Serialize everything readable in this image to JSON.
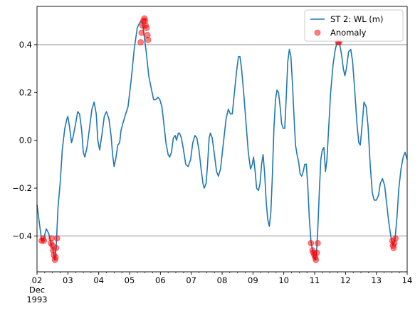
{
  "chart_data": {
    "type": "line",
    "title": "",
    "xlabel": "",
    "ylabel": "",
    "x_origin_label": [
      "02",
      "Dec",
      "1993"
    ],
    "x_ticks": [
      {
        "day": 2,
        "label": "02"
      },
      {
        "day": 3,
        "label": "03"
      },
      {
        "day": 4,
        "label": "04"
      },
      {
        "day": 5,
        "label": "05"
      },
      {
        "day": 6,
        "label": "06"
      },
      {
        "day": 7,
        "label": "07"
      },
      {
        "day": 8,
        "label": "08"
      },
      {
        "day": 9,
        "label": "09"
      },
      {
        "day": 10,
        "label": "10"
      },
      {
        "day": 11,
        "label": "11"
      },
      {
        "day": 12,
        "label": "12"
      },
      {
        "day": 13,
        "label": "13"
      },
      {
        "day": 14,
        "label": "14"
      }
    ],
    "xlim": [
      2,
      14
    ],
    "ylim": [
      -0.55,
      0.56
    ],
    "y_ticks": [
      -0.4,
      -0.2,
      0.0,
      0.2,
      0.4
    ],
    "y_tick_labels": [
      "−0.4",
      "−0.2",
      "0.0",
      "0.2",
      "0.4"
    ],
    "threshold_lines": [
      0.4,
      -0.4
    ],
    "legend_position": "upper right",
    "series": [
      {
        "name": "ST 2: WL (m)",
        "kind": "line",
        "color": "#1f77b4",
        "points": [
          [
            2.0,
            -0.27
          ],
          [
            2.08,
            -0.35
          ],
          [
            2.15,
            -0.42
          ],
          [
            2.22,
            -0.41
          ],
          [
            2.3,
            -0.37
          ],
          [
            2.38,
            -0.39
          ],
          [
            2.45,
            -0.43
          ],
          [
            2.52,
            -0.46
          ],
          [
            2.58,
            -0.5
          ],
          [
            2.62,
            -0.45
          ],
          [
            2.68,
            -0.28
          ],
          [
            2.75,
            -0.18
          ],
          [
            2.82,
            -0.04
          ],
          [
            2.9,
            0.05
          ],
          [
            2.97,
            0.09
          ],
          [
            3.0,
            0.1
          ],
          [
            3.05,
            0.06
          ],
          [
            3.12,
            -0.01
          ],
          [
            3.18,
            0.02
          ],
          [
            3.25,
            0.07
          ],
          [
            3.32,
            0.12
          ],
          [
            3.38,
            0.11
          ],
          [
            3.45,
            0.04
          ],
          [
            3.5,
            -0.05
          ],
          [
            3.55,
            -0.07
          ],
          [
            3.62,
            -0.03
          ],
          [
            3.7,
            0.05
          ],
          [
            3.78,
            0.13
          ],
          [
            3.85,
            0.16
          ],
          [
            3.92,
            0.11
          ],
          [
            3.97,
            0.0
          ],
          [
            4.03,
            -0.04
          ],
          [
            4.1,
            0.02
          ],
          [
            4.18,
            0.1
          ],
          [
            4.25,
            0.12
          ],
          [
            4.33,
            0.09
          ],
          [
            4.4,
            0.02
          ],
          [
            4.45,
            -0.06
          ],
          [
            4.5,
            -0.11
          ],
          [
            4.55,
            -0.08
          ],
          [
            4.62,
            -0.02
          ],
          [
            4.68,
            -0.01
          ],
          [
            4.72,
            0.04
          ],
          [
            4.78,
            0.07
          ],
          [
            4.85,
            0.1
          ],
          [
            4.95,
            0.14
          ],
          [
            5.05,
            0.25
          ],
          [
            5.15,
            0.38
          ],
          [
            5.25,
            0.47
          ],
          [
            5.32,
            0.49
          ],
          [
            5.38,
            0.5
          ],
          [
            5.42,
            0.49
          ],
          [
            5.48,
            0.43
          ],
          [
            5.55,
            0.36
          ],
          [
            5.62,
            0.27
          ],
          [
            5.7,
            0.22
          ],
          [
            5.78,
            0.17
          ],
          [
            5.85,
            0.17
          ],
          [
            5.92,
            0.18
          ],
          [
            5.98,
            0.17
          ],
          [
            6.05,
            0.14
          ],
          [
            6.12,
            0.06
          ],
          [
            6.18,
            -0.01
          ],
          [
            6.25,
            -0.06
          ],
          [
            6.3,
            -0.07
          ],
          [
            6.36,
            -0.05
          ],
          [
            6.42,
            0.01
          ],
          [
            6.48,
            0.02
          ],
          [
            6.52,
            0.0
          ],
          [
            6.58,
            0.03
          ],
          [
            6.62,
            0.03
          ],
          [
            6.68,
            0.01
          ],
          [
            6.75,
            -0.04
          ],
          [
            6.82,
            -0.1
          ],
          [
            6.9,
            -0.11
          ],
          [
            6.98,
            -0.08
          ],
          [
            7.05,
            -0.01
          ],
          [
            7.12,
            0.02
          ],
          [
            7.18,
            0.01
          ],
          [
            7.25,
            -0.04
          ],
          [
            7.32,
            -0.12
          ],
          [
            7.38,
            -0.18
          ],
          [
            7.42,
            -0.2
          ],
          [
            7.48,
            -0.18
          ],
          [
            7.53,
            -0.1
          ],
          [
            7.58,
            0.01
          ],
          [
            7.62,
            0.03
          ],
          [
            7.68,
            0.01
          ],
          [
            7.75,
            -0.06
          ],
          [
            7.82,
            -0.13
          ],
          [
            7.88,
            -0.15
          ],
          [
            7.95,
            -0.12
          ],
          [
            8.0,
            -0.06
          ],
          [
            8.07,
            0.02
          ],
          [
            8.13,
            0.09
          ],
          [
            8.2,
            0.13
          ],
          [
            8.27,
            0.11
          ],
          [
            8.33,
            0.11
          ],
          [
            8.4,
            0.2
          ],
          [
            8.47,
            0.29
          ],
          [
            8.53,
            0.35
          ],
          [
            8.58,
            0.35
          ],
          [
            8.63,
            0.3
          ],
          [
            8.7,
            0.2
          ],
          [
            8.77,
            0.08
          ],
          [
            8.85,
            -0.05
          ],
          [
            8.92,
            -0.12
          ],
          [
            8.98,
            -0.1
          ],
          [
            9.02,
            -0.07
          ],
          [
            9.07,
            -0.13
          ],
          [
            9.12,
            -0.2
          ],
          [
            9.18,
            -0.21
          ],
          [
            9.23,
            -0.18
          ],
          [
            9.28,
            -0.1
          ],
          [
            9.33,
            -0.06
          ],
          [
            9.38,
            -0.14
          ],
          [
            9.43,
            -0.26
          ],
          [
            9.48,
            -0.33
          ],
          [
            9.53,
            -0.36
          ],
          [
            9.58,
            -0.3
          ],
          [
            9.63,
            -0.15
          ],
          [
            9.68,
            0.05
          ],
          [
            9.73,
            0.17
          ],
          [
            9.78,
            0.21
          ],
          [
            9.83,
            0.2
          ],
          [
            9.88,
            0.14
          ],
          [
            9.93,
            0.07
          ],
          [
            9.98,
            0.05
          ],
          [
            10.03,
            0.05
          ],
          [
            10.08,
            0.18
          ],
          [
            10.13,
            0.33
          ],
          [
            10.18,
            0.38
          ],
          [
            10.23,
            0.35
          ],
          [
            10.28,
            0.24
          ],
          [
            10.33,
            0.1
          ],
          [
            10.38,
            -0.02
          ],
          [
            10.43,
            -0.06
          ],
          [
            10.48,
            -0.09
          ],
          [
            10.53,
            -0.14
          ],
          [
            10.58,
            -0.15
          ],
          [
            10.63,
            -0.13
          ],
          [
            10.68,
            -0.1
          ],
          [
            10.73,
            -0.1
          ],
          [
            10.78,
            -0.2
          ],
          [
            10.83,
            -0.33
          ],
          [
            10.88,
            -0.42
          ],
          [
            10.93,
            -0.46
          ],
          [
            10.98,
            -0.49
          ],
          [
            11.02,
            -0.5
          ],
          [
            11.06,
            -0.47
          ],
          [
            11.1,
            -0.38
          ],
          [
            11.15,
            -0.22
          ],
          [
            11.2,
            -0.08
          ],
          [
            11.25,
            -0.04
          ],
          [
            11.3,
            -0.03
          ],
          [
            11.35,
            -0.13
          ],
          [
            11.4,
            -0.08
          ],
          [
            11.45,
            0.04
          ],
          [
            11.52,
            0.2
          ],
          [
            11.6,
            0.32
          ],
          [
            11.67,
            0.38
          ],
          [
            11.73,
            0.41
          ],
          [
            11.8,
            0.41
          ],
          [
            11.87,
            0.36
          ],
          [
            11.93,
            0.3
          ],
          [
            11.98,
            0.27
          ],
          [
            12.03,
            0.3
          ],
          [
            12.1,
            0.37
          ],
          [
            12.17,
            0.38
          ],
          [
            12.23,
            0.33
          ],
          [
            12.3,
            0.21
          ],
          [
            12.37,
            0.07
          ],
          [
            12.43,
            -0.01
          ],
          [
            12.48,
            -0.02
          ],
          [
            12.53,
            0.05
          ],
          [
            12.6,
            0.16
          ],
          [
            12.67,
            0.14
          ],
          [
            12.73,
            0.06
          ],
          [
            12.8,
            -0.1
          ],
          [
            12.87,
            -0.22
          ],
          [
            12.93,
            -0.25
          ],
          [
            13.0,
            -0.25
          ],
          [
            13.07,
            -0.23
          ],
          [
            13.13,
            -0.18
          ],
          [
            13.2,
            -0.16
          ],
          [
            13.27,
            -0.19
          ],
          [
            13.33,
            -0.26
          ],
          [
            13.4,
            -0.34
          ],
          [
            13.47,
            -0.4
          ],
          [
            13.53,
            -0.44
          ],
          [
            13.6,
            -0.42
          ],
          [
            13.67,
            -0.32
          ],
          [
            13.73,
            -0.2
          ],
          [
            13.8,
            -0.12
          ],
          [
            13.87,
            -0.07
          ],
          [
            13.93,
            -0.05
          ],
          [
            14.0,
            -0.08
          ]
        ]
      },
      {
        "name": "Anomaly",
        "kind": "scatter",
        "color": "#ff0000",
        "points": [
          [
            2.15,
            -0.42
          ],
          [
            2.2,
            -0.41
          ],
          [
            2.22,
            -0.42
          ],
          [
            2.45,
            -0.43
          ],
          [
            2.47,
            -0.41
          ],
          [
            2.5,
            -0.44
          ],
          [
            2.52,
            -0.46
          ],
          [
            2.55,
            -0.48
          ],
          [
            2.58,
            -0.5
          ],
          [
            2.6,
            -0.49
          ],
          [
            2.62,
            -0.45
          ],
          [
            2.65,
            -0.41
          ],
          [
            5.36,
            0.41
          ],
          [
            5.39,
            0.45
          ],
          [
            5.42,
            0.48
          ],
          [
            5.45,
            0.5
          ],
          [
            5.48,
            0.51
          ],
          [
            5.5,
            0.5
          ],
          [
            5.52,
            0.48
          ],
          [
            5.55,
            0.47
          ],
          [
            5.58,
            0.44
          ],
          [
            5.6,
            0.42
          ],
          [
            10.88,
            -0.43
          ],
          [
            10.93,
            -0.46
          ],
          [
            10.96,
            -0.47
          ],
          [
            10.99,
            -0.48
          ],
          [
            11.02,
            -0.49
          ],
          [
            11.04,
            -0.5
          ],
          [
            11.07,
            -0.47
          ],
          [
            11.1,
            -0.43
          ],
          [
            11.76,
            0.41
          ],
          [
            11.8,
            0.41
          ],
          [
            13.52,
            -0.42
          ],
          [
            13.54,
            -0.44
          ],
          [
            13.56,
            -0.45
          ],
          [
            13.58,
            -0.43
          ],
          [
            13.62,
            -0.41
          ]
        ]
      }
    ]
  }
}
